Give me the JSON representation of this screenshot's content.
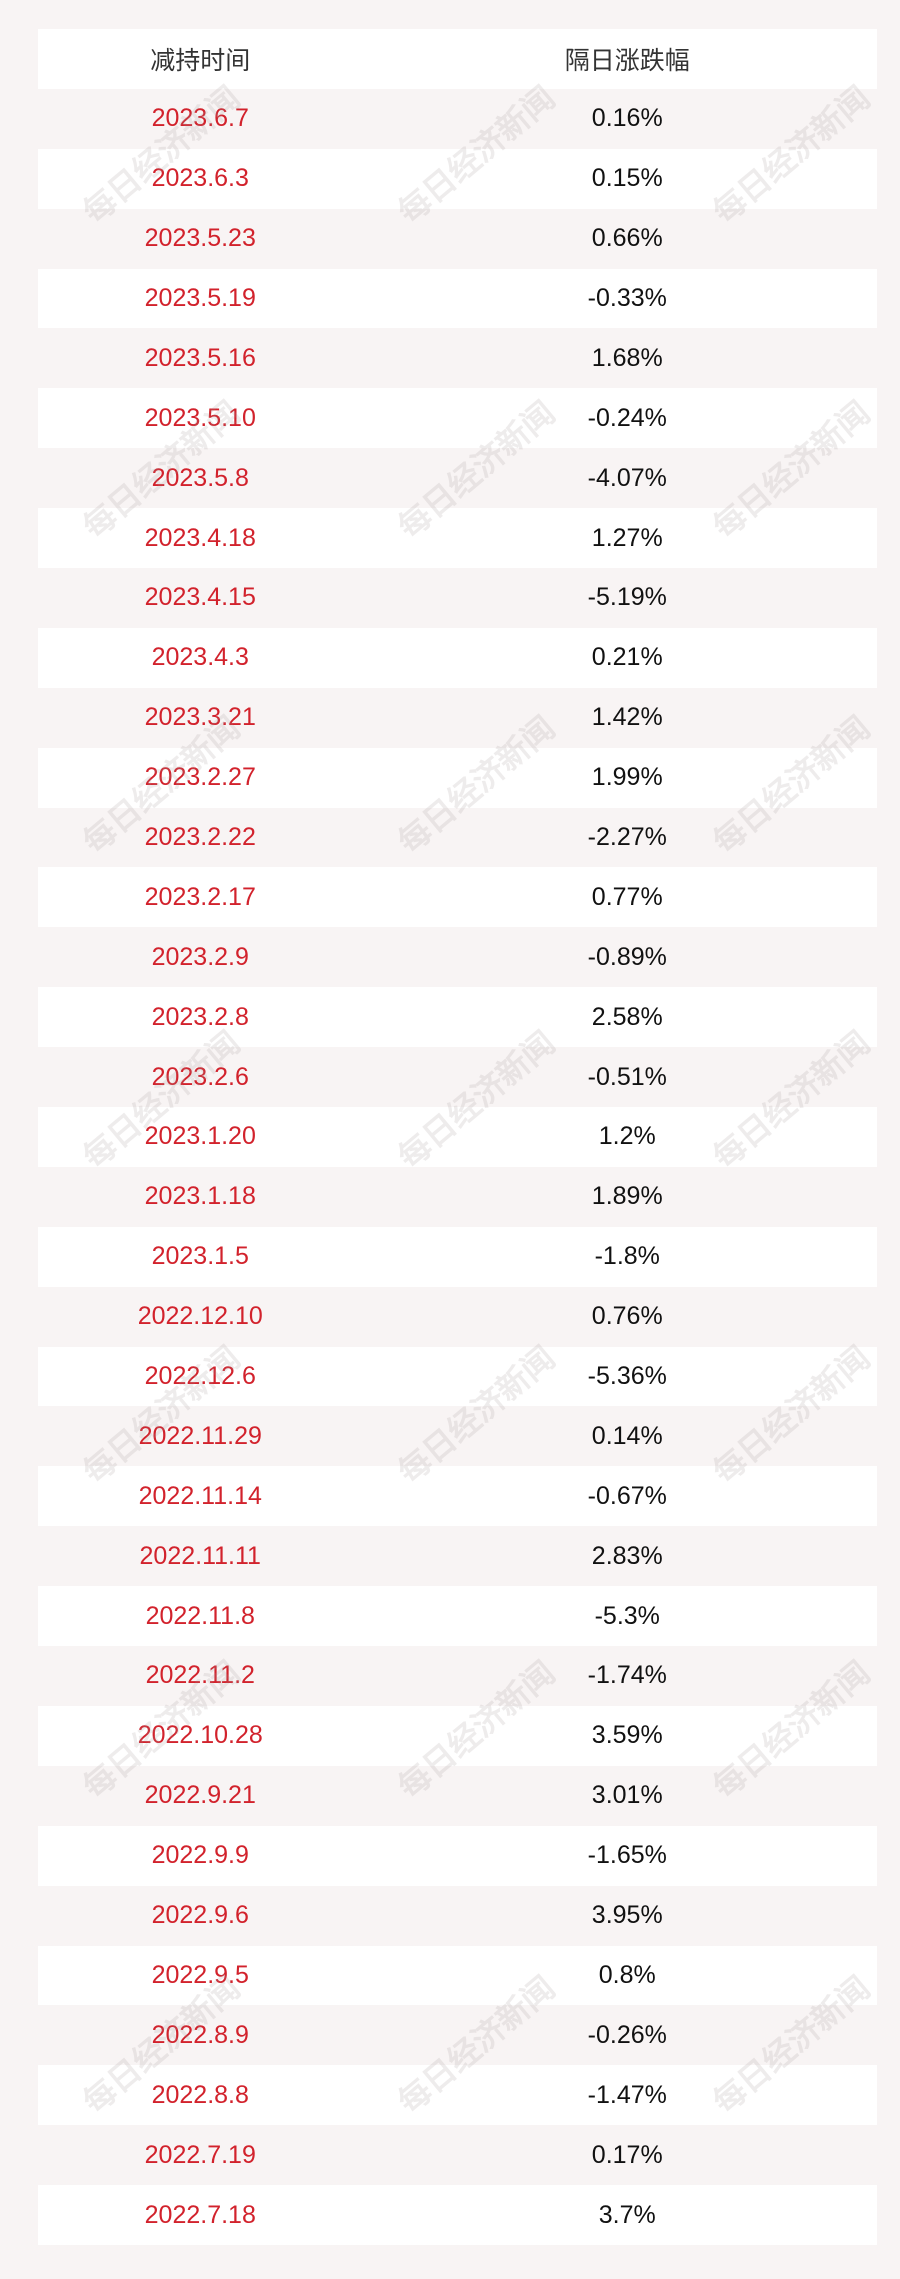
{
  "watermark": "每日经济新闻",
  "table": {
    "header": [
      "减持时间",
      "隔日涨跌幅"
    ],
    "rows": [
      [
        "2023.6.7",
        "0.16%"
      ],
      [
        "2023.6.3",
        "0.15%"
      ],
      [
        "2023.5.23",
        "0.66%"
      ],
      [
        "2023.5.19",
        "-0.33%"
      ],
      [
        "2023.5.16",
        "1.68%"
      ],
      [
        "2023.5.10",
        "-0.24%"
      ],
      [
        "2023.5.8",
        "-4.07%"
      ],
      [
        "2023.4.18",
        "1.27%"
      ],
      [
        "2023.4.15",
        "-5.19%"
      ],
      [
        "2023.4.3",
        "0.21%"
      ],
      [
        "2023.3.21",
        "1.42%"
      ],
      [
        "2023.2.27",
        "1.99%"
      ],
      [
        "2023.2.22",
        "-2.27%"
      ],
      [
        "2023.2.17",
        "0.77%"
      ],
      [
        "2023.2.9",
        "-0.89%"
      ],
      [
        "2023.2.8",
        "2.58%"
      ],
      [
        "2023.2.6",
        "-0.51%"
      ],
      [
        "2023.1.20",
        "1.2%"
      ],
      [
        "2023.1.18",
        "1.89%"
      ],
      [
        "2023.1.5",
        "-1.8%"
      ],
      [
        "2022.12.10",
        "0.76%"
      ],
      [
        "2022.12.6",
        "-5.36%"
      ],
      [
        "2022.11.29",
        "0.14%"
      ],
      [
        "2022.11.14",
        "-0.67%"
      ],
      [
        "2022.11.11",
        "2.83%"
      ],
      [
        "2022.11.8",
        "-5.3%"
      ],
      [
        "2022.11.2",
        "-1.74%"
      ],
      [
        "2022.10.28",
        "3.59%"
      ],
      [
        "2022.9.21",
        "3.01%"
      ],
      [
        "2022.9.9",
        "-1.65%"
      ],
      [
        "2022.9.6",
        "3.95%"
      ],
      [
        "2022.9.5",
        "0.8%"
      ],
      [
        "2022.8.9",
        "-0.26%"
      ],
      [
        "2022.8.8",
        "-1.47%"
      ],
      [
        "2022.7.19",
        "0.17%"
      ],
      [
        "2022.7.18",
        "3.7%"
      ]
    ]
  }
}
